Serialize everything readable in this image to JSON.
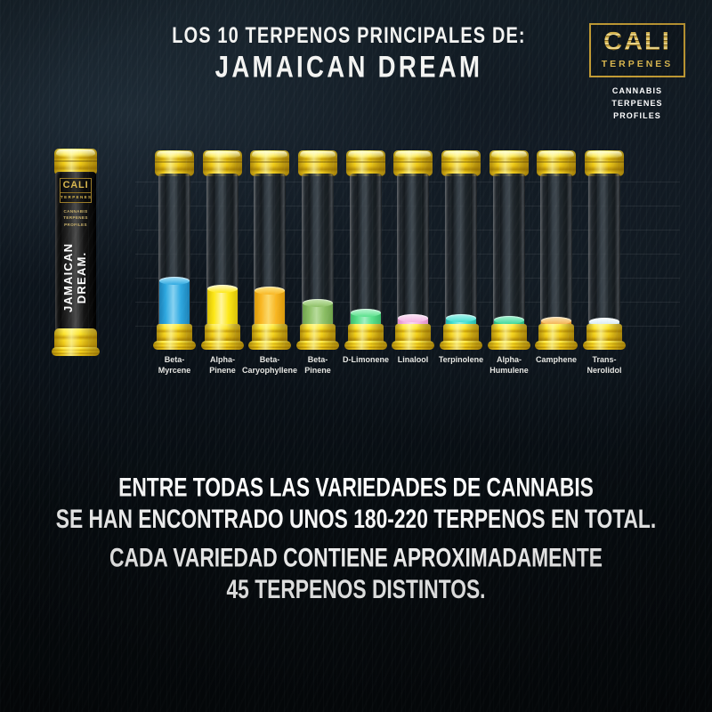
{
  "header": {
    "title_line1": "LOS 10 TERPENOS PRINCIPALES DE:",
    "title_line2": "JAMAICAN DREAM"
  },
  "logo": {
    "brand_name": "CALI",
    "brand_sub": "TERPENES",
    "tagline_line1": "CANNABIS TERPENES",
    "tagline_line2": "PROFILES"
  },
  "product_tube": {
    "label_brand": "CALI",
    "label_brand_sub": "TERPENES",
    "label_tagline_line1": "CANNABIS TERPENES",
    "label_tagline_line2": "PROFILES",
    "strain_line1": "JAMAICAN",
    "strain_line2": "DREAM."
  },
  "chart_data": {
    "type": "bar",
    "title": "Los 10 terpenos principales de: Jamaican Dream",
    "categories": [
      "Beta-Myrcene",
      "Alpha-Pinene",
      "Beta-Caryophyllene",
      "Beta-Pinene",
      "D-Limonene",
      "Linalool",
      "Terpinolene",
      "Alpha-Humulene",
      "Camphene",
      "Trans-Nerolidol"
    ],
    "label_lines": [
      [
        "Beta-",
        "Myrcene"
      ],
      [
        "Alpha-",
        "Pinene"
      ],
      [
        "Beta-",
        "Caryophyllene"
      ],
      [
        "Beta-",
        "Pinene"
      ],
      [
        "D-Limonene"
      ],
      [
        "Linalool"
      ],
      [
        "Terpinolene"
      ],
      [
        "Alpha-",
        "Humulene"
      ],
      [
        "Camphene"
      ],
      [
        "Trans-",
        "Nerolidol"
      ]
    ],
    "values": [
      55,
      46,
      44,
      30,
      19,
      13,
      13,
      11,
      10,
      9
    ],
    "value_unit": "relative fill height (px), no numeric axis shown",
    "ylim": [
      0,
      170
    ],
    "grid": "faint horizontal lines",
    "legend": false,
    "colors": [
      {
        "main": "#2fa9e1",
        "light": "#87d2f1",
        "dark": "#1a7fb5"
      },
      {
        "main": "#fde816",
        "light": "#fff59b",
        "dark": "#d9bf05"
      },
      {
        "main": "#f9b723",
        "light": "#fcd96a",
        "dark": "#d99708"
      },
      {
        "main": "#8ec066",
        "light": "#b8dc9b",
        "dark": "#6da04a"
      },
      {
        "main": "#59e18b",
        "light": "#a2f0c0",
        "dark": "#3cba6b"
      },
      {
        "main": "#f5b3e3",
        "light": "#fad9f1",
        "dark": "#dd8fc7"
      },
      {
        "main": "#43ded0",
        "light": "#93efe6",
        "dark": "#27b5a8"
      },
      {
        "main": "#41d89b",
        "light": "#8fecc4",
        "dark": "#2aae7b"
      },
      {
        "main": "#f4b04b",
        "light": "#f9d594",
        "dark": "#d98f2b"
      },
      {
        "main": "#d3e7f0",
        "light": "#f0f8fb",
        "dark": "#a9cbd9"
      }
    ]
  },
  "footer": {
    "para1_line1": "ENTRE TODAS LAS VARIEDADES DE CANNABIS",
    "para1_line2": "SE HAN ENCONTRADO UNOS 180-220 TERPENOS EN TOTAL.",
    "para2_line1": "CADA VARIEDAD CONTIENE APROXIMADAMENTE",
    "para2_line2": "45 TERPENOS DISTINTOS."
  }
}
